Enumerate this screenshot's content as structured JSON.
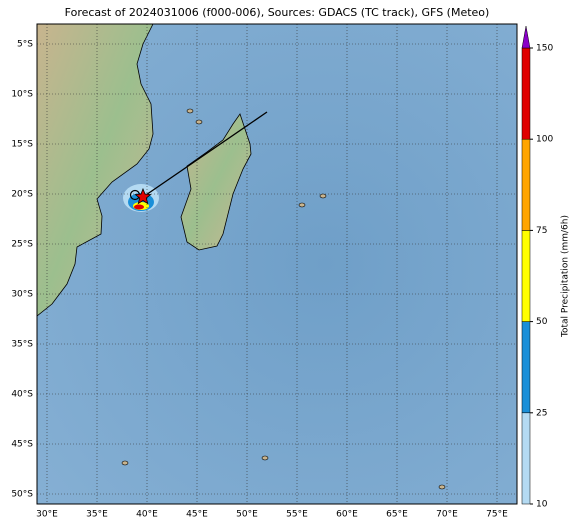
{
  "map": {
    "title": "Forecast of 2024031006 (f000-006), Sources: GDACS (TC track), GFS (Meteo)",
    "lat_labels": [
      "5°S",
      "10°S",
      "15°S",
      "20°S",
      "25°S",
      "30°S",
      "35°S",
      "40°S",
      "45°S",
      "50°S"
    ],
    "lon_labels": [
      "30°E",
      "35°E",
      "40°E",
      "45°E",
      "50°E",
      "55°E",
      "60°E",
      "65°E",
      "70°E",
      "75°E"
    ],
    "colorbar": {
      "label": "Total Precipitation (mm/6h)",
      "ticks": [
        10,
        25,
        50,
        75,
        100,
        150
      ],
      "colors": [
        "#b4daf2",
        "#1a8fd8",
        "#ffff00",
        "#ffa500",
        "#e00000"
      ],
      "extend_color": "#8a00c8"
    }
  }
}
